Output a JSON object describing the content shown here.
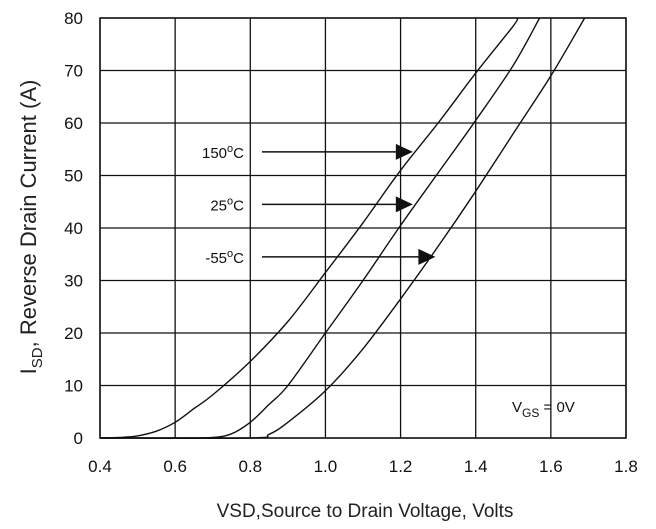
{
  "chart_data": {
    "type": "line",
    "title": "",
    "xlabel": "VSD,Source to Drain Voltage, Volts",
    "ylabel": {
      "main": "I",
      "sub": "SD",
      "rest": ", Reverse Drain Current (A)"
    },
    "xlim": [
      0.4,
      1.8
    ],
    "ylim": [
      0,
      80
    ],
    "xticks": [
      "0.4",
      "0.6",
      "0.8",
      "1.0",
      "1.2",
      "1.4",
      "1.6",
      "1.8"
    ],
    "yticks": [
      "0",
      "10",
      "20",
      "30",
      "40",
      "50",
      "60",
      "70",
      "80"
    ],
    "grid": true,
    "line_color": "#111111",
    "series": [
      {
        "name": "150°C",
        "label": {
          "value": "150",
          "unit": "C"
        },
        "x": [
          0.4,
          0.45,
          0.5,
          0.55,
          0.6,
          0.65,
          0.7,
          0.8,
          0.9,
          1.0,
          1.1,
          1.2,
          1.3,
          1.4,
          1.5,
          1.51
        ],
        "y": [
          0,
          0.1,
          0.4,
          1.3,
          3.0,
          5.6,
          8.2,
          14.6,
          22.2,
          31.5,
          41.0,
          51.0,
          60.0,
          69.5,
          78.5,
          80
        ],
        "arrow_target": [
          1.23,
          54.5
        ]
      },
      {
        "name": "25°C",
        "label": {
          "value": "25",
          "unit": "C"
        },
        "x": [
          0.4,
          0.6,
          0.7,
          0.75,
          0.8,
          0.85,
          0.9,
          1.0,
          1.1,
          1.2,
          1.3,
          1.4,
          1.5,
          1.57
        ],
        "y": [
          0,
          0,
          0.1,
          0.8,
          3.0,
          6.4,
          10.0,
          20.0,
          30.0,
          40.5,
          50.5,
          60.5,
          71.0,
          80
        ],
        "arrow_target": [
          1.23,
          44.5
        ]
      },
      {
        "name": "-55°C",
        "label": {
          "value": "-55",
          "unit": "C"
        },
        "x": [
          0.4,
          0.8,
          0.85,
          0.9,
          1.0,
          1.1,
          1.2,
          1.3,
          1.4,
          1.5,
          1.6,
          1.69
        ],
        "y": [
          0,
          0,
          0.7,
          3.0,
          9.0,
          17.0,
          26.5,
          36.5,
          47.0,
          58.0,
          69.0,
          80
        ],
        "arrow_target": [
          1.29,
          34.5
        ]
      }
    ],
    "annotations": [
      {
        "sym": "V",
        "sub": "GS",
        "text": " = 0V",
        "position": "bottom-right"
      }
    ]
  }
}
